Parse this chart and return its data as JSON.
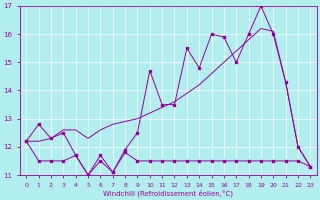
{
  "xlabel": "Windchill (Refroidissement éolien,°C)",
  "background_color": "#b2eeee",
  "line_color": "#990099",
  "grid_color": "#ffffff",
  "xlim": [
    -0.5,
    23.5
  ],
  "ylim": [
    11,
    17
  ],
  "xticks": [
    0,
    1,
    2,
    3,
    4,
    5,
    6,
    7,
    8,
    9,
    10,
    11,
    12,
    13,
    14,
    15,
    16,
    17,
    18,
    19,
    20,
    21,
    22,
    23
  ],
  "yticks": [
    11,
    12,
    13,
    14,
    15,
    16,
    17
  ],
  "line1_y": [
    12.2,
    12.8,
    12.3,
    12.5,
    11.7,
    11.0,
    11.7,
    11.1,
    11.9,
    12.5,
    14.7,
    13.5,
    13.5,
    15.5,
    14.8,
    16.0,
    15.9,
    15.0,
    16.0,
    17.0,
    16.0,
    14.3,
    12.0,
    11.3
  ],
  "line2_y": [
    12.2,
    12.2,
    12.3,
    12.6,
    12.6,
    12.3,
    12.6,
    12.8,
    12.9,
    13.0,
    13.2,
    13.4,
    13.6,
    13.9,
    14.2,
    14.6,
    15.0,
    15.4,
    15.8,
    16.2,
    16.1,
    14.3,
    12.0,
    11.3
  ],
  "line3_y": [
    12.2,
    11.5,
    11.5,
    11.5,
    11.7,
    11.0,
    11.5,
    11.1,
    11.8,
    11.5,
    11.5,
    11.5,
    11.5,
    11.5,
    11.5,
    11.5,
    11.5,
    11.5,
    11.5,
    11.5,
    11.5,
    11.5,
    11.5,
    11.3
  ]
}
